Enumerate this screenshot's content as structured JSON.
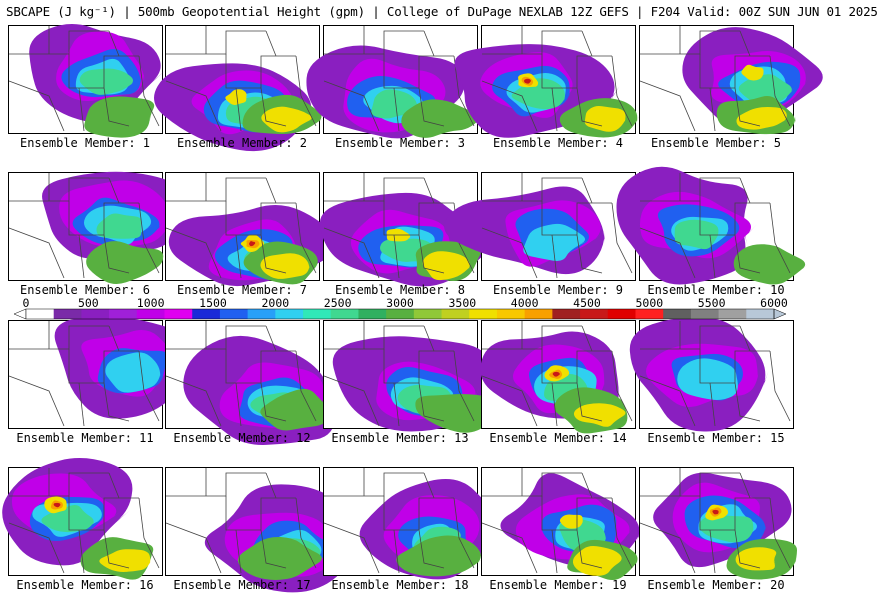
{
  "header": {
    "title": "SBCAPE (J kg⁻¹) | 500mb Geopotential Height (gpm) | College of DuPage NEXLAB 12Z GEFS | F204 Valid: 00Z SUN JUN 01 2025"
  },
  "panels": [
    {
      "label": "Ensemble Member: 1",
      "level": 2
    },
    {
      "label": "Ensemble Member: 2",
      "level": 3
    },
    {
      "label": "Ensemble Member: 3",
      "level": 2
    },
    {
      "label": "Ensemble Member: 4",
      "level": 4
    },
    {
      "label": "Ensemble Member: 5",
      "level": 3
    },
    {
      "label": "Ensemble Member: 6",
      "level": 2
    },
    {
      "label": "Ensemble Member: 7",
      "level": 4
    },
    {
      "label": "Ensemble Member: 8",
      "level": 3
    },
    {
      "label": "Ensemble Member: 9",
      "level": 1
    },
    {
      "label": "Ensemble Member: 10",
      "level": 2
    },
    {
      "label": "Ensemble Member: 11",
      "level": 1
    },
    {
      "label": "Ensemble Member: 12",
      "level": 2
    },
    {
      "label": "Ensemble Member: 13",
      "level": 2
    },
    {
      "label": "Ensemble Member: 14",
      "level": 4
    },
    {
      "label": "Ensemble Member: 15",
      "level": 1
    },
    {
      "label": "Ensemble Member: 16",
      "level": 4
    },
    {
      "label": "Ensemble Member: 17",
      "level": 2
    },
    {
      "label": "Ensemble Member: 18",
      "level": 2
    },
    {
      "label": "Ensemble Member: 19",
      "level": 3
    },
    {
      "label": "Ensemble Member: 20",
      "level": 4
    }
  ],
  "colorbar": {
    "min": 0,
    "max": 6000,
    "tick_labels": [
      "0",
      "500",
      "1000",
      "1500",
      "2000",
      "2500",
      "3000",
      "3500",
      "4000",
      "4500",
      "5000",
      "5500",
      "6000"
    ],
    "colors": [
      "#ffffff",
      "#7a2aa8",
      "#8a1fc0",
      "#a020d8",
      "#c000e8",
      "#e000f0",
      "#1a2ad8",
      "#2060f0",
      "#28a0f8",
      "#30d0f0",
      "#30e8b8",
      "#40d890",
      "#30b060",
      "#58b040",
      "#90c838",
      "#c0d020",
      "#f0e000",
      "#f8c800",
      "#f8a000",
      "#a02020",
      "#c81818",
      "#e00000",
      "#ff2020",
      "#606060",
      "#808080",
      "#a0a0a0",
      "#b8c8d8"
    ]
  },
  "map_colors": {
    "purple": "#8a1fc0",
    "magenta": "#c000e8",
    "blue": "#2060f0",
    "cyan": "#30d0f0",
    "teal": "#40d890",
    "green": "#58b040",
    "yellow": "#f0e000",
    "orange": "#f8a000",
    "red": "#c81818",
    "border": "#444444"
  }
}
